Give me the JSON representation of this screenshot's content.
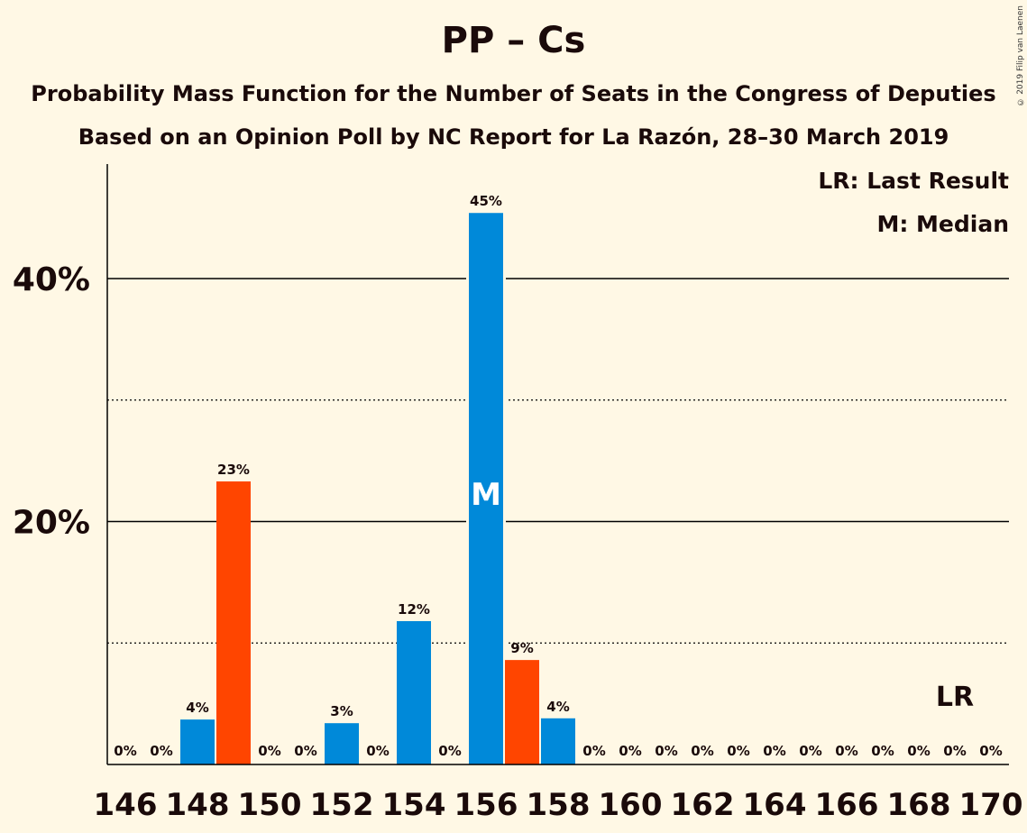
{
  "title": "PP – Cs",
  "subtitle_1": "Probability Mass Function for the Number of Seats in the Congress of Deputies",
  "subtitle_2": "Based on an Opinion Poll by NC Report for La Razón, 28–30 March 2019",
  "copyright": "© 2019 Filip van Laenen",
  "legend": {
    "last_result": "LR: Last Result",
    "median": "M: Median"
  },
  "colors": {
    "blue": "#0089D9",
    "orange": "#FF4500",
    "background": "#FFF8E5"
  },
  "chart_data": {
    "type": "bar",
    "x": [
      146,
      147,
      148,
      149,
      150,
      151,
      152,
      153,
      154,
      155,
      156,
      157,
      158,
      159,
      160,
      161,
      162,
      163,
      164,
      165,
      166,
      167,
      168,
      169,
      170
    ],
    "values": [
      0,
      0,
      3.7,
      23.3,
      0,
      0,
      3.4,
      0,
      11.8,
      0,
      45.4,
      8.6,
      3.8,
      0,
      0,
      0,
      0,
      0,
      0,
      0,
      0,
      0,
      0,
      0,
      0
    ],
    "labels": [
      "0%",
      "0%",
      "4%",
      "23%",
      "0%",
      "0%",
      "3%",
      "0%",
      "12%",
      "0%",
      "45%",
      "9%",
      "4%",
      "0%",
      "0%",
      "0%",
      "0%",
      "0%",
      "0%",
      "0%",
      "0%",
      "0%",
      "0%",
      "0%",
      "0%"
    ],
    "bar_colors": [
      "#0089D9",
      "#0089D9",
      "#0089D9",
      "#FF4500",
      "#0089D9",
      "#0089D9",
      "#0089D9",
      "#0089D9",
      "#0089D9",
      "#0089D9",
      "#0089D9",
      "#FF4500",
      "#0089D9",
      "#0089D9",
      "#0089D9",
      "#0089D9",
      "#0089D9",
      "#0089D9",
      "#0089D9",
      "#0089D9",
      "#0089D9",
      "#0089D9",
      "#0089D9",
      "#0089D9",
      "#0089D9"
    ],
    "x_tick_labels": [
      "146",
      "148",
      "150",
      "152",
      "154",
      "156",
      "158",
      "160",
      "162",
      "164",
      "166",
      "168",
      "170"
    ],
    "y_tick_labels": [
      "20%",
      "40%"
    ],
    "ylim": [
      0,
      49.5
    ],
    "grid_solid": [
      20,
      40
    ],
    "grid_dotted": [
      10,
      30
    ],
    "median": {
      "seat": 156,
      "label": "M"
    },
    "last_result": {
      "seat": 169,
      "label": "LR"
    }
  }
}
